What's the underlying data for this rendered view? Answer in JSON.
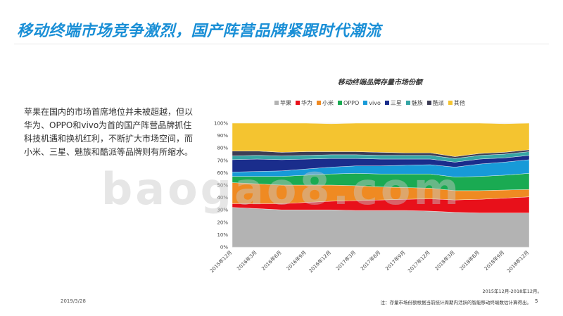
{
  "slide": {
    "title": "移动终端市场竞争激烈，国产阵营品牌紧跟时代潮流",
    "body_text": "苹果在国内的市场首席地位并未被超越，但以华为、OPPO和vivo为首的国产阵营品牌抓住科技机遇和换机红利，不断扩大市场空间，而小米、三星、魅族和酷派等品牌则有所缩水。",
    "watermark": "baogao8.com",
    "date_range": "2015年12月-2018年12月。",
    "note": "注：存量市场份额根据当前统计周期内活跃的智能移动终端数估计算得出。",
    "page_number": "5",
    "footer_date": "2019/3/28"
  },
  "chart_data": {
    "type": "area",
    "stacked": true,
    "title": "移动终端品牌存量市场份额",
    "xlabel": "",
    "ylabel": "",
    "ylim": [
      0,
      100
    ],
    "y_ticks": [
      "0%",
      "10%",
      "20%",
      "30%",
      "40%",
      "50%",
      "60%",
      "70%",
      "80%",
      "90%",
      "100%"
    ],
    "grid": true,
    "legend_position": "top",
    "x_tick_labels": [
      "2015年12月",
      "2016年3月",
      "2016年6月",
      "2016年9月",
      "2016年12月",
      "2017年3月",
      "2017年6月",
      "2017年9月",
      "2017年12月",
      "2018年3月",
      "2018年6月",
      "2018年9月",
      "2018年12月"
    ],
    "series": [
      {
        "name": "苹果",
        "color": "#b3b3b3",
        "values": [
          32,
          31,
          30,
          30,
          30,
          29.5,
          29.5,
          29.5,
          29,
          28,
          27.5,
          27.5,
          27.5
        ]
      },
      {
        "name": "华为",
        "color": "#e8101a",
        "values": [
          3,
          4,
          5,
          6,
          7,
          8,
          8.5,
          9,
          10,
          10,
          11,
          12,
          13
        ]
      },
      {
        "name": "小米",
        "color": "#ef8a22",
        "values": [
          17,
          16,
          15,
          14,
          13,
          12,
          10.5,
          9.5,
          8.5,
          7.5,
          7,
          6.5,
          6
        ]
      },
      {
        "name": "OPPO",
        "color": "#1aaa52",
        "values": [
          5,
          6,
          7,
          8,
          9,
          10,
          10.5,
          11,
          11.5,
          11,
          11.5,
          12,
          13
        ]
      },
      {
        "name": "vivo",
        "color": "#179ad8",
        "values": [
          3.5,
          4,
          4.5,
          5,
          5.5,
          6,
          6.5,
          7,
          7.5,
          8,
          10,
          10.5,
          11
        ]
      },
      {
        "name": "三星",
        "color": "#1a2d8c",
        "values": [
          10,
          10,
          9,
          8,
          7,
          6,
          5.5,
          5,
          4.5,
          4,
          4,
          3.5,
          3.5
        ]
      },
      {
        "name": "魅族",
        "color": "#35a5a5",
        "values": [
          3,
          3,
          3,
          3,
          3,
          3,
          3,
          3,
          3,
          3,
          3,
          3,
          3
        ]
      },
      {
        "name": "酷派",
        "color": "#3d3d55",
        "values": [
          4,
          3.5,
          3,
          3,
          2.5,
          2.5,
          2.5,
          2,
          2,
          1.5,
          1.5,
          1.5,
          1.5
        ]
      },
      {
        "name": "其他",
        "color": "#f4c430",
        "values": [
          22.5,
          22.5,
          23.5,
          23,
          22.5,
          23,
          23.5,
          24,
          24,
          27,
          24.5,
          23,
          21.5
        ]
      }
    ]
  }
}
